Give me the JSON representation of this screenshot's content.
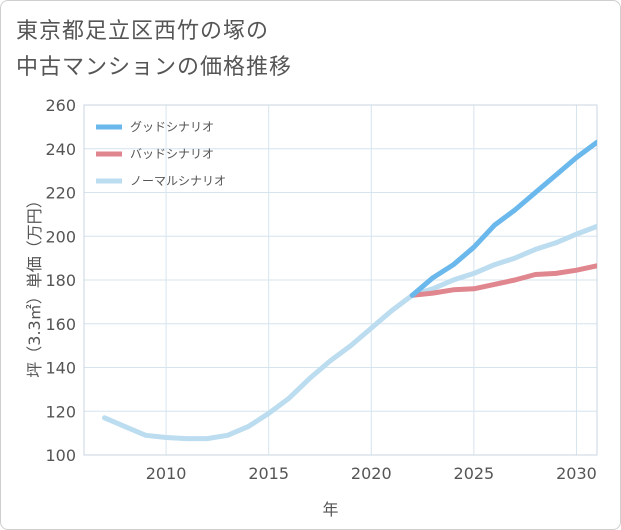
{
  "title": {
    "line1": "東京都足立区西竹の塚の",
    "line2": "中古マンションの価格推移"
  },
  "chart_data": {
    "type": "line",
    "title": "東京都足立区西竹の塚の中古マンションの価格推移",
    "xlabel": "年",
    "ylabel": "坪（3.3㎡）単価（万円）",
    "xlim": [
      2006,
      2031
    ],
    "ylim": [
      100,
      260
    ],
    "xticks": [
      2010,
      2015,
      2020,
      2025,
      2030
    ],
    "yticks": [
      100,
      120,
      140,
      160,
      180,
      200,
      220,
      240,
      260
    ],
    "grid": true,
    "legend_position": "top-left",
    "series": [
      {
        "name": "グッドシナリオ",
        "color": "#6bb8ec",
        "x": [
          2022,
          2023,
          2024,
          2025,
          2026,
          2027,
          2028,
          2029,
          2030,
          2031
        ],
        "values": [
          173,
          181,
          187,
          195,
          205,
          212,
          220,
          228,
          236,
          243
        ]
      },
      {
        "name": "バッドシナリオ",
        "color": "#e0868f",
        "x": [
          2022,
          2023,
          2024,
          2025,
          2026,
          2027,
          2028,
          2029,
          2030,
          2031
        ],
        "values": [
          173,
          174,
          175.5,
          176,
          178,
          180,
          182.5,
          183,
          184.5,
          186.5
        ]
      },
      {
        "name": "ノーマルシナリオ",
        "color": "#bcdcf0",
        "x": [
          2007,
          2008,
          2009,
          2010,
          2011,
          2012,
          2013,
          2014,
          2015,
          2016,
          2017,
          2018,
          2019,
          2020,
          2021,
          2022,
          2023,
          2024,
          2025,
          2026,
          2027,
          2028,
          2029,
          2030,
          2031
        ],
        "values": [
          117,
          113,
          109,
          108,
          107.5,
          107.5,
          109,
          113,
          119,
          126,
          135,
          143,
          150,
          158,
          166,
          173,
          176,
          180,
          183,
          187,
          190,
          194,
          197,
          201,
          204.5
        ]
      }
    ]
  }
}
